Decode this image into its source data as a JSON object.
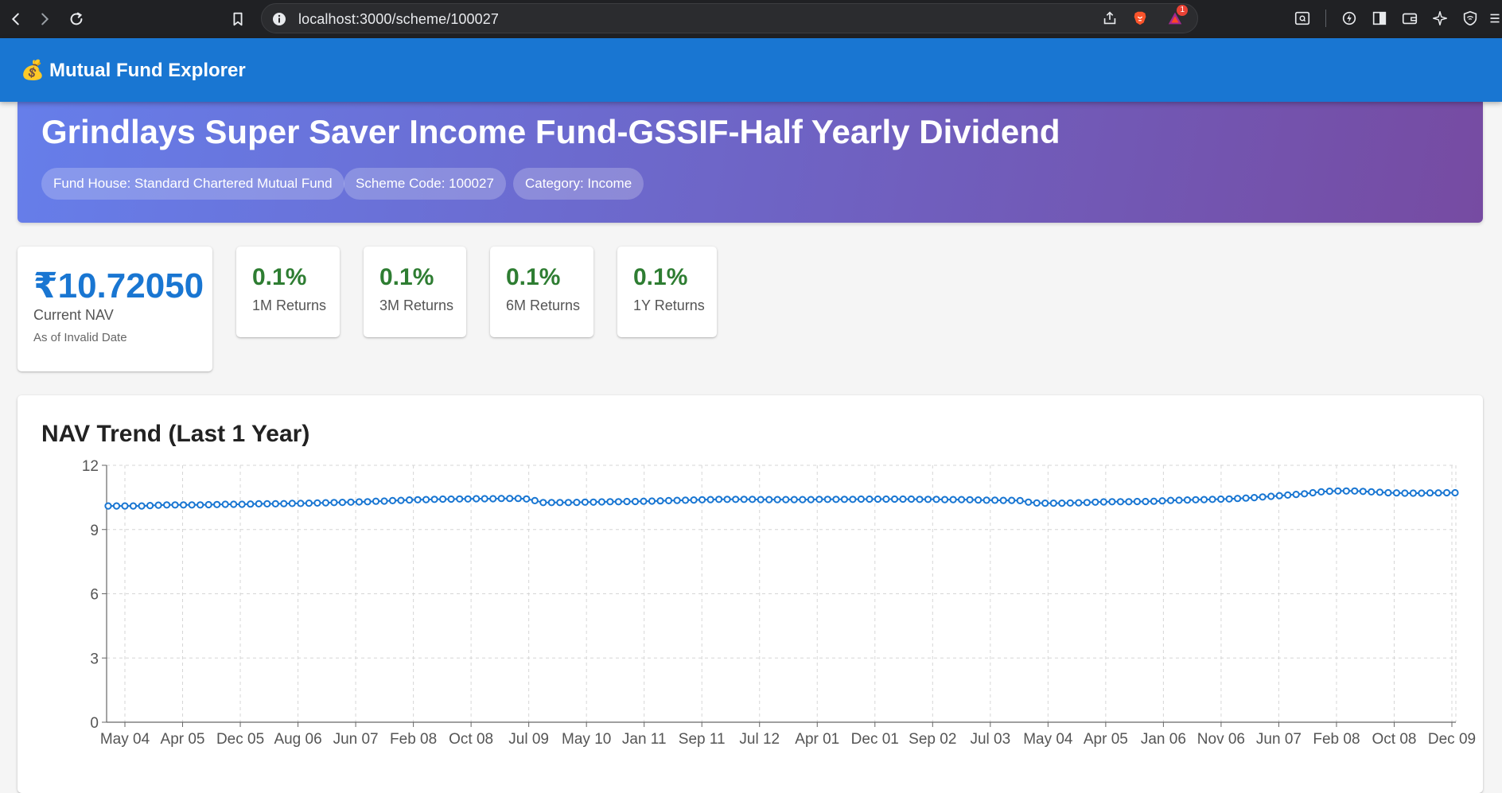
{
  "browser": {
    "url": "localhost:3000/scheme/100027",
    "notification_count": "1"
  },
  "appbar": {
    "logo_emoji": "💰",
    "title": "Mutual Fund Explorer"
  },
  "scheme": {
    "name": "Grindlays Super Saver Income Fund-GSSIF-Half Yearly Dividend",
    "chips": [
      "Fund House: Standard Chartered Mutual Fund",
      "Scheme Code: 100027",
      "Category: Income"
    ]
  },
  "nav": {
    "value": "₹10.72050",
    "label": "Current NAV",
    "as_of": "As of Invalid Date"
  },
  "returns": [
    {
      "value": "0.1%",
      "label": "1M Returns"
    },
    {
      "value": "0.1%",
      "label": "3M Returns"
    },
    {
      "value": "0.1%",
      "label": "6M Returns"
    },
    {
      "value": "0.1%",
      "label": "1Y Returns"
    }
  ],
  "chart_data": {
    "type": "line",
    "title": "NAV Trend (Last 1 Year)",
    "xlabel": "",
    "ylabel": "",
    "ylim": [
      0,
      12
    ],
    "yticks": [
      0,
      3,
      6,
      9,
      12
    ],
    "grid": true,
    "x_tick_labels": [
      "May 04",
      "Apr 05",
      "Dec 05",
      "Aug 06",
      "Jun 07",
      "Feb 08",
      "Oct 08",
      "Jul 09",
      "May 10",
      "Jan 11",
      "Sep 11",
      "Jul 12",
      "Apr 01",
      "Dec 01",
      "Sep 02",
      "Jul 03",
      "May 04",
      "Apr 05",
      "Jan 06",
      "Nov 06",
      "Jun 07",
      "Feb 08",
      "Oct 08",
      "Dec 09"
    ],
    "series": [
      {
        "color": "#1976d2",
        "values": [
          10.1,
          10.1,
          10.1,
          10.1,
          10.1,
          10.12,
          10.14,
          10.15,
          10.15,
          10.15,
          10.15,
          10.15,
          10.16,
          10.17,
          10.18,
          10.18,
          10.18,
          10.19,
          10.2,
          10.2,
          10.2,
          10.21,
          10.22,
          10.22,
          10.23,
          10.24,
          10.25,
          10.26,
          10.27,
          10.28,
          10.29,
          10.3,
          10.32,
          10.33,
          10.35,
          10.36,
          10.38,
          10.39,
          10.4,
          10.41,
          10.42,
          10.42,
          10.43,
          10.43,
          10.44,
          10.44,
          10.44,
          10.45,
          10.45,
          10.45,
          10.43,
          10.35,
          10.26,
          10.26,
          10.26,
          10.26,
          10.27,
          10.28,
          10.28,
          10.29,
          10.3,
          10.3,
          10.31,
          10.31,
          10.32,
          10.33,
          10.34,
          10.35,
          10.36,
          10.37,
          10.38,
          10.39,
          10.4,
          10.41,
          10.41,
          10.41,
          10.41,
          10.41,
          10.4,
          10.4,
          10.4,
          10.4,
          10.4,
          10.4,
          10.4,
          10.41,
          10.41,
          10.41,
          10.41,
          10.41,
          10.42,
          10.42,
          10.42,
          10.42,
          10.42,
          10.42,
          10.42,
          10.41,
          10.41,
          10.41,
          10.4,
          10.4,
          10.4,
          10.39,
          10.38,
          10.37,
          10.37,
          10.36,
          10.36,
          10.35,
          10.28,
          10.24,
          10.23,
          10.23,
          10.23,
          10.24,
          10.25,
          10.26,
          10.28,
          10.29,
          10.3,
          10.3,
          10.3,
          10.31,
          10.31,
          10.32,
          10.34,
          10.36,
          10.37,
          10.38,
          10.39,
          10.4,
          10.41,
          10.42,
          10.43,
          10.45,
          10.47,
          10.49,
          10.52,
          10.55,
          10.58,
          10.61,
          10.64,
          10.67,
          10.72,
          10.76,
          10.79,
          10.8,
          10.8,
          10.8,
          10.78,
          10.76,
          10.74,
          10.72,
          10.71,
          10.7,
          10.7,
          10.7,
          10.71,
          10.71,
          10.72,
          10.72
        ]
      }
    ]
  }
}
